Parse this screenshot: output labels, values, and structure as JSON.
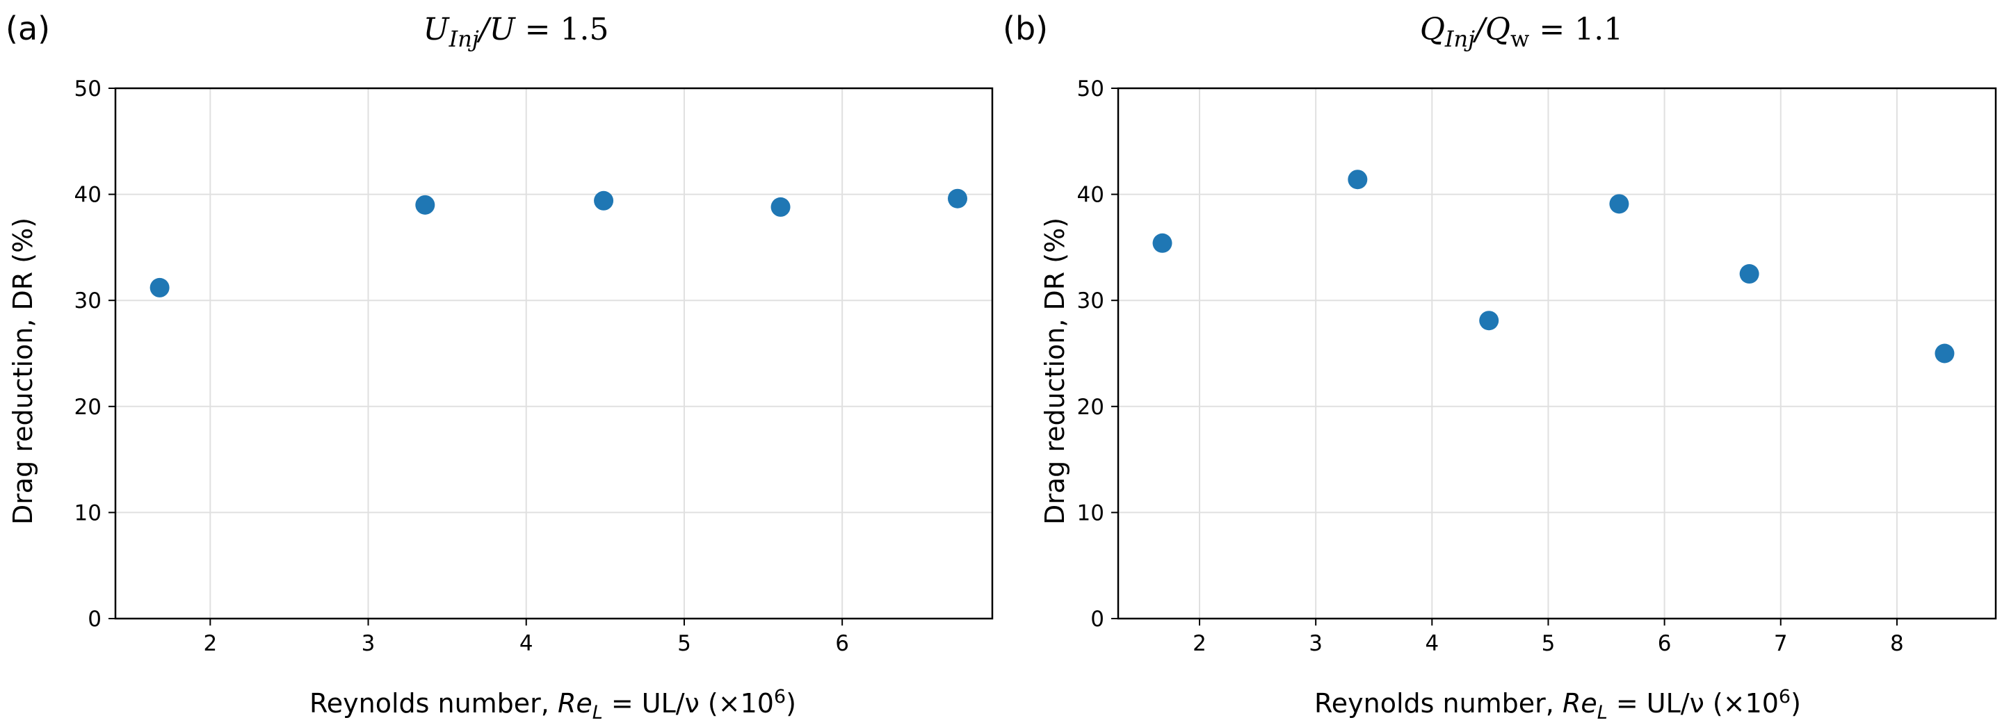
{
  "chart_data": [
    {
      "type": "scatter",
      "panel_label": "(a)",
      "title": "U_Inj/U = 1.5",
      "title_parts": {
        "main": "U",
        "sub": "Inj",
        "rest": "/U",
        "eq": " = 1.5"
      },
      "xlabel_parts": {
        "pre": "Reynolds number, ",
        "re": "Re",
        "sub": "L",
        "mid": " = UL/ν (×10",
        "sup": "6",
        "post": ")"
      },
      "ylabel": "Drag reduction, DR (%)",
      "xlim": [
        1.4,
        6.95
      ],
      "ylim": [
        0,
        50
      ],
      "xticks": [
        2,
        3,
        4,
        5,
        6
      ],
      "yticks": [
        0,
        10,
        20,
        30,
        40,
        50
      ],
      "grid": true,
      "color": "#1f77b4",
      "series": [
        {
          "x": [
            1.68,
            3.36,
            4.49,
            5.61,
            6.73
          ],
          "y": [
            31.2,
            39.0,
            39.4,
            38.8,
            39.6
          ]
        }
      ]
    },
    {
      "type": "scatter",
      "panel_label": "(b)",
      "title": "Q_Inj/Q_w = 1.1",
      "title_parts": {
        "main": "Q",
        "sub": "Inj",
        "rest": "/Q",
        "sub2": "w",
        "eq": " = 1.1"
      },
      "xlabel_parts": {
        "pre": "Reynolds number, ",
        "re": "Re",
        "sub": "L",
        "mid": " = UL/ν (×10",
        "sup": "6",
        "post": ")"
      },
      "ylabel": "Drag reduction, DR (%)",
      "xlim": [
        1.3,
        8.85
      ],
      "ylim": [
        0,
        50
      ],
      "xticks": [
        2,
        3,
        4,
        5,
        6,
        7,
        8
      ],
      "yticks": [
        0,
        10,
        20,
        30,
        40,
        50
      ],
      "grid": true,
      "color": "#1f77b4",
      "series": [
        {
          "x": [
            1.68,
            3.36,
            4.49,
            5.61,
            6.73,
            8.41
          ],
          "y": [
            35.4,
            41.4,
            28.1,
            39.1,
            32.5,
            25.0
          ]
        }
      ]
    }
  ]
}
